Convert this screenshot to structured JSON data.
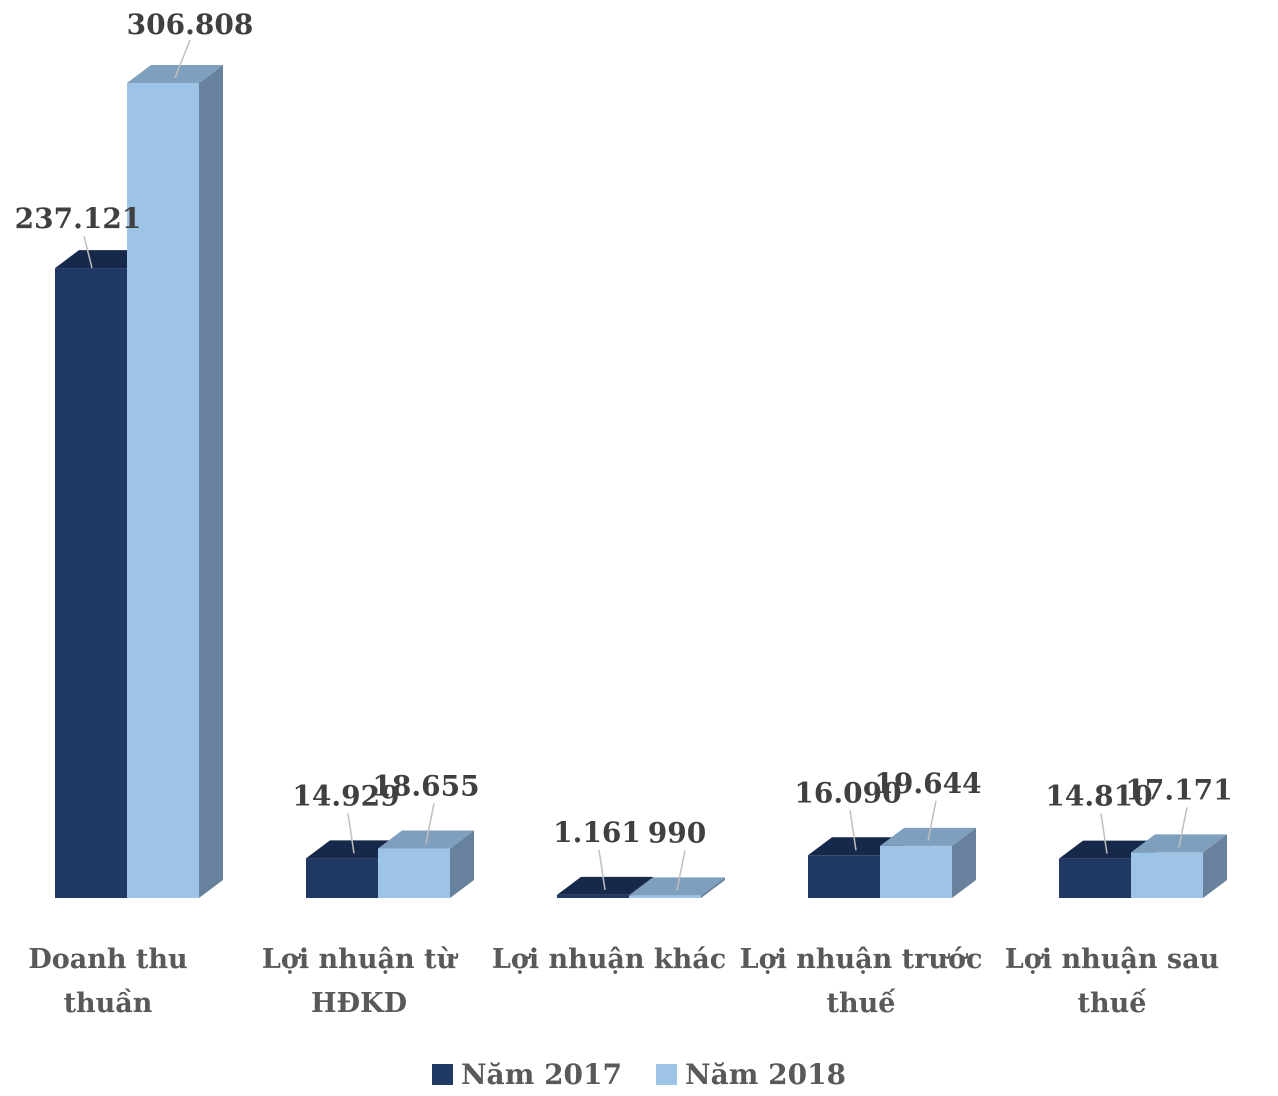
{
  "chart_data": {
    "type": "bar",
    "three_d": true,
    "categories": [
      [
        "Doanh thu",
        "thuần"
      ],
      [
        "Lợi nhuận từ",
        "HĐKD"
      ],
      [
        "Lợi nhuận khác"
      ],
      [
        "Lợi nhuận trước",
        "thuế"
      ],
      [
        "Lợi nhuận sau",
        "thuế"
      ]
    ],
    "series": [
      {
        "name": "Năm 2017",
        "values": [
          237121,
          14929,
          1161,
          16090,
          14810
        ],
        "labels": [
          "237.121",
          "14.929",
          "1.161",
          "16.090",
          "14.810"
        ],
        "color": "#1f3864",
        "top_color": "#17294a",
        "side_color": "#142440"
      },
      {
        "name": "Năm 2018",
        "values": [
          306808,
          18655,
          990,
          19644,
          17171
        ],
        "labels": [
          "306.808",
          "18.655",
          "990",
          "19.644",
          "17.171"
        ],
        "color": "#9dc3e6",
        "top_color": "#7f9fbf",
        "side_color": "#68829e"
      }
    ],
    "ylim": [
      0,
      306808
    ],
    "grid": false,
    "legend_position": "bottom",
    "title": "",
    "xlabel": "",
    "ylabel": ""
  }
}
